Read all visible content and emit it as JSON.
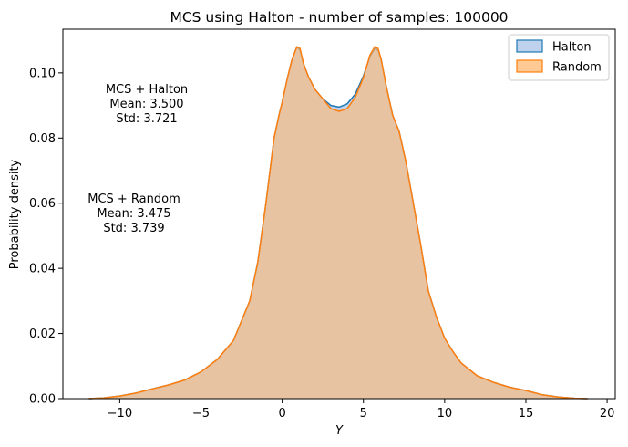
{
  "chart_data": {
    "type": "area",
    "title": "MCS using Halton - number of samples: 100000",
    "xlabel": "Y",
    "ylabel": "Probability density",
    "xlim": [
      -13.5,
      20.5
    ],
    "ylim": [
      0,
      0.1134
    ],
    "xticks": [
      -10,
      -5,
      0,
      5,
      10,
      15,
      20
    ],
    "yticks": [
      0.0,
      0.02,
      0.04,
      0.06,
      0.08,
      0.1
    ],
    "ytick_labels": [
      "0.00",
      "0.02",
      "0.04",
      "0.06",
      "0.08",
      "0.10"
    ],
    "grid": false,
    "legend_position": "top-right",
    "x": [
      -11.9,
      -11,
      -10,
      -9,
      -8,
      -7,
      -6,
      -5,
      -4,
      -3,
      -2,
      -1.5,
      -1,
      -0.5,
      -0.2,
      0,
      0.3,
      0.6,
      0.9,
      1.1,
      1.3,
      1.6,
      2.0,
      2.5,
      3.0,
      3.5,
      4.0,
      4.5,
      5.0,
      5.4,
      5.7,
      5.9,
      6.1,
      6.4,
      6.8,
      7.2,
      7.6,
      8.0,
      8.5,
      9.0,
      9.5,
      10.0,
      10.5,
      11,
      12,
      13,
      14,
      15,
      16,
      17,
      18,
      18.8
    ],
    "series": [
      {
        "name": "Halton",
        "color": "#1f77b4",
        "fill": "#aec7e8",
        "values": [
          0.0,
          0.0002,
          0.0008,
          0.0017,
          0.003,
          0.0042,
          0.0057,
          0.0082,
          0.012,
          0.0178,
          0.03,
          0.042,
          0.06,
          0.08,
          0.087,
          0.091,
          0.098,
          0.104,
          0.108,
          0.107,
          0.103,
          0.099,
          0.095,
          0.092,
          0.09,
          0.0895,
          0.0905,
          0.0935,
          0.099,
          0.105,
          0.1075,
          0.107,
          0.104,
          0.096,
          0.087,
          0.082,
          0.073,
          0.062,
          0.048,
          0.033,
          0.025,
          0.0185,
          0.0145,
          0.011,
          0.007,
          0.005,
          0.0035,
          0.0025,
          0.0012,
          0.0005,
          0.0001,
          0.0
        ]
      },
      {
        "name": "Random",
        "color": "#ff7f0e",
        "fill": "#ffbb78",
        "values": [
          0.0,
          0.0002,
          0.0008,
          0.0017,
          0.003,
          0.0042,
          0.0057,
          0.0082,
          0.012,
          0.0178,
          0.03,
          0.042,
          0.06,
          0.08,
          0.087,
          0.091,
          0.098,
          0.104,
          0.108,
          0.1075,
          0.103,
          0.099,
          0.095,
          0.092,
          0.089,
          0.0882,
          0.089,
          0.0925,
          0.0985,
          0.1055,
          0.108,
          0.1075,
          0.104,
          0.096,
          0.087,
          0.082,
          0.073,
          0.062,
          0.048,
          0.033,
          0.025,
          0.0185,
          0.0145,
          0.011,
          0.007,
          0.005,
          0.0035,
          0.0025,
          0.0012,
          0.0005,
          0.0001,
          0.0
        ]
      }
    ],
    "annotations": [
      {
        "lines": [
          "MCS + Halton",
          "Mean: 3.500",
          "Std: 3.721"
        ]
      },
      {
        "lines": [
          "MCS + Random",
          "Mean: 3.475",
          "Std: 3.739"
        ]
      }
    ]
  }
}
